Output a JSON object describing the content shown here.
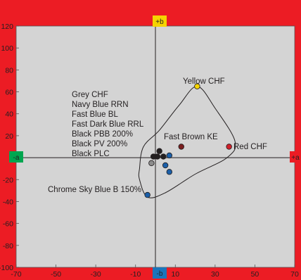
{
  "page": {
    "background": "#ec1c24"
  },
  "chart_data": {
    "type": "scatter",
    "title": "",
    "xlabel": "",
    "ylabel": "",
    "xlim": [
      -70,
      70
    ],
    "ylim": [
      -100,
      120
    ],
    "x_ticks": [
      -70,
      -50,
      -30,
      -10,
      10,
      30,
      50,
      70
    ],
    "x_tick_labels": [
      "-70",
      "-50",
      "-30",
      "-10",
      "10",
      "30",
      "50",
      "70"
    ],
    "y_ticks": [
      -100,
      -80,
      -60,
      -40,
      -20,
      0,
      20,
      40,
      60,
      80,
      100,
      120
    ],
    "y_tick_labels": [
      "-100",
      "-80",
      "-60",
      "-40",
      "-20",
      "0",
      "20",
      "40",
      "60",
      "80",
      "100",
      "120"
    ],
    "grid": false,
    "plot_background": "#d4d4d4",
    "axis_badges": {
      "top": {
        "text": "+b",
        "color": "#f5d400"
      },
      "bottom": {
        "text": "-b",
        "color": "#1b75bb"
      },
      "left": {
        "text": "-a",
        "color": "#00a650"
      },
      "right": {
        "text": "+a",
        "color": "#ec1c24"
      }
    },
    "points": [
      {
        "name": "Yellow CHF",
        "x": 21,
        "y": 65,
        "color": "#f5d400"
      },
      {
        "name": "Fast Brown KE",
        "x": 13,
        "y": 10,
        "color": "#7a1e1e"
      },
      {
        "name": "Red CHF",
        "x": 37,
        "y": 10,
        "color": "#d0202a"
      },
      {
        "name": "Grey CHF",
        "x": -2,
        "y": -5,
        "color": "#8c8c8c"
      },
      {
        "name": "Navy Blue RRN",
        "x": 1,
        "y": 1,
        "color": "#231f20"
      },
      {
        "name": "Fast Blue BL",
        "x": 7,
        "y": 2,
        "color": "#1b5fa8"
      },
      {
        "name": "Fast Dark Blue RRL",
        "x": 5,
        "y": -7,
        "color": "#1b5fa8"
      },
      {
        "name": "Black PBB 200%",
        "x": 2,
        "y": 6,
        "color": "#231f20"
      },
      {
        "name": "Black PV 200%",
        "x": 4,
        "y": 1,
        "color": "#231f20"
      },
      {
        "name": "Black PLC",
        "x": -1,
        "y": 1,
        "color": "#231f20"
      },
      {
        "name": "Chrome Sky Blue B 150%",
        "x": -4,
        "y": -34,
        "color": "#1b5fa8"
      },
      {
        "name": "Fast Blue BL",
        "x": 7,
        "y": -13,
        "color": "#1b5fa8"
      }
    ],
    "annotations": {
      "group_list": [
        "Grey CHF",
        "Navy Blue RRN",
        "Fast Blue BL",
        "Fast Dark Blue RRL",
        "Black PBB 200%",
        "Black PV 200%",
        "Black PLC"
      ],
      "yellow": "Yellow CHF",
      "brown": "Fast Brown KE",
      "red": "Red CHF",
      "chrome": "Chrome Sky Blue B 150%"
    },
    "gamut_outline": [
      [
        -8,
        -10
      ],
      [
        -6,
        10
      ],
      [
        2,
        25
      ],
      [
        12,
        48
      ],
      [
        21,
        65
      ],
      [
        30,
        45
      ],
      [
        40,
        15
      ],
      [
        36,
        0
      ],
      [
        20,
        -15
      ],
      [
        5,
        -32
      ],
      [
        -4,
        -36
      ],
      [
        -8,
        -20
      ]
    ]
  }
}
